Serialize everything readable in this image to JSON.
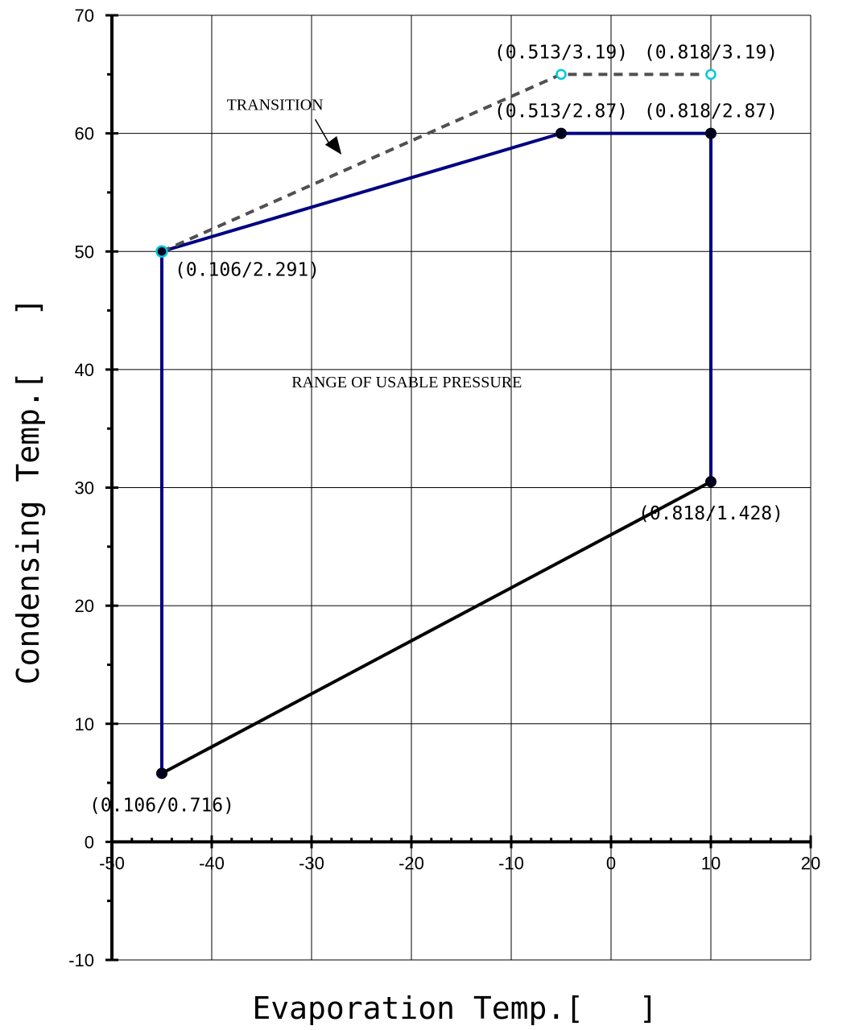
{
  "chart_data": {
    "type": "line",
    "xlabel": "Evaporation Temp.[   ]",
    "ylabel": "Condensing Temp.[   ]",
    "xlim": [
      -50,
      20
    ],
    "ylim": [
      -10,
      70
    ],
    "x_ticks": [
      -50,
      -40,
      -30,
      -20,
      -10,
      0,
      10,
      20
    ],
    "y_ticks": [
      -10,
      0,
      10,
      20,
      30,
      40,
      50,
      60,
      70
    ],
    "grid": true,
    "series": [
      {
        "color": "#000080",
        "dash": false,
        "points": [
          [
            -45,
            5.8
          ],
          [
            -45,
            50
          ],
          [
            -5,
            60
          ],
          [
            10,
            60
          ],
          [
            10,
            30.5
          ]
        ]
      },
      {
        "color": "#000000",
        "dash": false,
        "points": [
          [
            -45,
            5.8
          ],
          [
            10,
            30.5
          ]
        ]
      },
      {
        "color": "#505050",
        "dash": true,
        "points": [
          [
            -45,
            50
          ],
          [
            -5,
            65
          ],
          [
            10,
            65
          ]
        ]
      }
    ],
    "markers": [
      {
        "x": -45,
        "y": 5.8,
        "style": "filled",
        "label": "(0.106/0.716)",
        "label_pos": "below"
      },
      {
        "x": -45,
        "y": 50,
        "style": "cyan",
        "label": "(0.106/2.291)",
        "label_pos": "below-right"
      },
      {
        "x": -5,
        "y": 60,
        "style": "filled",
        "label": "(0.513/2.87)",
        "label_pos": "above"
      },
      {
        "x": 10,
        "y": 60,
        "style": "filled",
        "label": "(0.818/2.87)",
        "label_pos": "above"
      },
      {
        "x": 10,
        "y": 30.5,
        "style": "filled",
        "label": "(0.818/1.428)",
        "label_pos": "below"
      },
      {
        "x": -5,
        "y": 65,
        "style": "cyan-open",
        "label": "(0.513/3.19)",
        "label_pos": "above"
      },
      {
        "x": 10,
        "y": 65,
        "style": "cyan-open",
        "label": "(0.818/3.19)",
        "label_pos": "above"
      }
    ],
    "annotations": [
      {
        "text": "TRANSITION",
        "x": -38.5,
        "y": 62,
        "arrow_to": [
          -27,
          58.2
        ]
      },
      {
        "text": "RANGE OF USABLE PRESSURE",
        "x": -32,
        "y": 38.5
      }
    ],
    "colors": {
      "blue_line": "#000080",
      "black_line": "#000000",
      "dashed": "#505050",
      "cyan_marker": "#00c8d8"
    }
  }
}
